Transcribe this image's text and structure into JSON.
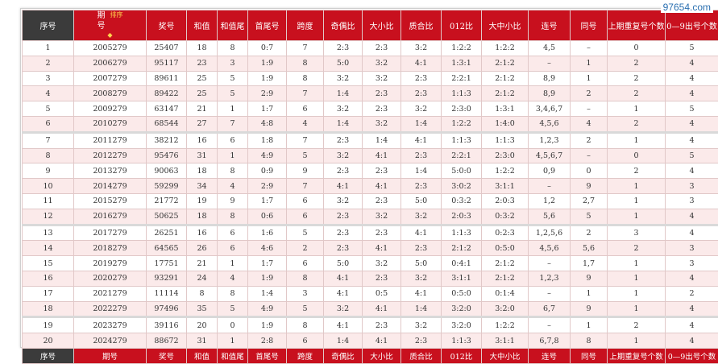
{
  "watermark": "97654.com",
  "header": {
    "cols": [
      "序号",
      "期号",
      "奖号",
      "和值",
      "和值尾",
      "首尾号",
      "跨度",
      "奇偶比",
      "大小比",
      "质合比",
      "012比",
      "大中小比",
      "连号",
      "同号",
      "上期重复号个数",
      "0—9出号个数"
    ],
    "sort_label": "排序"
  },
  "footer": {
    "cols": [
      "序号",
      "期号",
      "奖号",
      "和值",
      "和值尾",
      "首尾号",
      "跨度",
      "奇偶比",
      "大小比",
      "质合比",
      "012比",
      "大中小比",
      "连号",
      "同号",
      "上期重复号个数",
      "0—9出号个数"
    ]
  },
  "rows": [
    [
      "1",
      "2005279",
      "25407",
      "18",
      "8",
      "0:7",
      "7",
      "2:3",
      "2:3",
      "3:2",
      "1:2:2",
      "1:2:2",
      "4,5",
      "–",
      "0",
      "5"
    ],
    [
      "2",
      "2006279",
      "95117",
      "23",
      "3",
      "1:9",
      "8",
      "5:0",
      "3:2",
      "4:1",
      "1:3:1",
      "2:1:2",
      "–",
      "1",
      "2",
      "4"
    ],
    [
      "3",
      "2007279",
      "89611",
      "25",
      "5",
      "1:9",
      "8",
      "3:2",
      "3:2",
      "2:3",
      "2:2:1",
      "2:1:2",
      "8,9",
      "1",
      "2",
      "4"
    ],
    [
      "4",
      "2008279",
      "89422",
      "25",
      "5",
      "2:9",
      "7",
      "1:4",
      "2:3",
      "2:3",
      "1:1:3",
      "2:1:2",
      "8,9",
      "2",
      "2",
      "4"
    ],
    [
      "5",
      "2009279",
      "63147",
      "21",
      "1",
      "1:7",
      "6",
      "3:2",
      "2:3",
      "3:2",
      "2:3:0",
      "1:3:1",
      "3,4,6,7",
      "–",
      "1",
      "5"
    ],
    [
      "6",
      "2010279",
      "68544",
      "27",
      "7",
      "4:8",
      "4",
      "1:4",
      "3:2",
      "1:4",
      "1:2:2",
      "1:4:0",
      "4,5,6",
      "4",
      "2",
      "4"
    ],
    [
      "7",
      "2011279",
      "38212",
      "16",
      "6",
      "1:8",
      "7",
      "2:3",
      "1:4",
      "4:1",
      "1:1:3",
      "1:1:3",
      "1,2,3",
      "2",
      "1",
      "4"
    ],
    [
      "8",
      "2012279",
      "95476",
      "31",
      "1",
      "4:9",
      "5",
      "3:2",
      "4:1",
      "2:3",
      "2:2:1",
      "2:3:0",
      "4,5,6,7",
      "–",
      "0",
      "5"
    ],
    [
      "9",
      "2013279",
      "90063",
      "18",
      "8",
      "0:9",
      "9",
      "2:3",
      "2:3",
      "1:4",
      "5:0:0",
      "1:2:2",
      "0,9",
      "0",
      "2",
      "4"
    ],
    [
      "10",
      "2014279",
      "59299",
      "34",
      "4",
      "2:9",
      "7",
      "4:1",
      "4:1",
      "2:3",
      "3:0:2",
      "3:1:1",
      "–",
      "9",
      "1",
      "3"
    ],
    [
      "11",
      "2015279",
      "21772",
      "19",
      "9",
      "1:7",
      "6",
      "3:2",
      "2:3",
      "5:0",
      "0:3:2",
      "2:0:3",
      "1,2",
      "2,7",
      "1",
      "3"
    ],
    [
      "12",
      "2016279",
      "50625",
      "18",
      "8",
      "0:6",
      "6",
      "2:3",
      "3:2",
      "3:2",
      "2:0:3",
      "0:3:2",
      "5,6",
      "5",
      "1",
      "4"
    ],
    [
      "13",
      "2017279",
      "26251",
      "16",
      "6",
      "1:6",
      "5",
      "2:3",
      "2:3",
      "4:1",
      "1:1:3",
      "0:2:3",
      "1,2,5,6",
      "2",
      "3",
      "4"
    ],
    [
      "14",
      "2018279",
      "64565",
      "26",
      "6",
      "4:6",
      "2",
      "2:3",
      "4:1",
      "2:3",
      "2:1:2",
      "0:5:0",
      "4,5,6",
      "5,6",
      "2",
      "3"
    ],
    [
      "15",
      "2019279",
      "17751",
      "21",
      "1",
      "1:7",
      "6",
      "5:0",
      "3:2",
      "5:0",
      "0:4:1",
      "2:1:2",
      "–",
      "1,7",
      "1",
      "3"
    ],
    [
      "16",
      "2020279",
      "93291",
      "24",
      "4",
      "1:9",
      "8",
      "4:1",
      "2:3",
      "3:2",
      "3:1:1",
      "2:1:2",
      "1,2,3",
      "9",
      "1",
      "4"
    ],
    [
      "17",
      "2021279",
      "11114",
      "8",
      "8",
      "1:4",
      "3",
      "4:1",
      "0:5",
      "4:1",
      "0:5:0",
      "0:1:4",
      "–",
      "1",
      "1",
      "2"
    ],
    [
      "18",
      "2022279",
      "97496",
      "35",
      "5",
      "4:9",
      "5",
      "3:2",
      "4:1",
      "1:4",
      "3:2:0",
      "3:2:0",
      "6,7",
      "9",
      "1",
      "4"
    ],
    [
      "19",
      "2023279",
      "39116",
      "20",
      "0",
      "1:9",
      "8",
      "4:1",
      "2:3",
      "3:2",
      "3:2:0",
      "1:2:2",
      "–",
      "1",
      "2",
      "4"
    ],
    [
      "20",
      "2024279",
      "88672",
      "31",
      "1",
      "2:8",
      "6",
      "1:4",
      "4:1",
      "2:3",
      "1:1:3",
      "3:1:1",
      "6,7,8",
      "8",
      "1",
      "4"
    ]
  ],
  "colors": {
    "header_red": "#c8101e",
    "header_dark": "#3b3b3b",
    "row_alt": "#fbeaea"
  }
}
